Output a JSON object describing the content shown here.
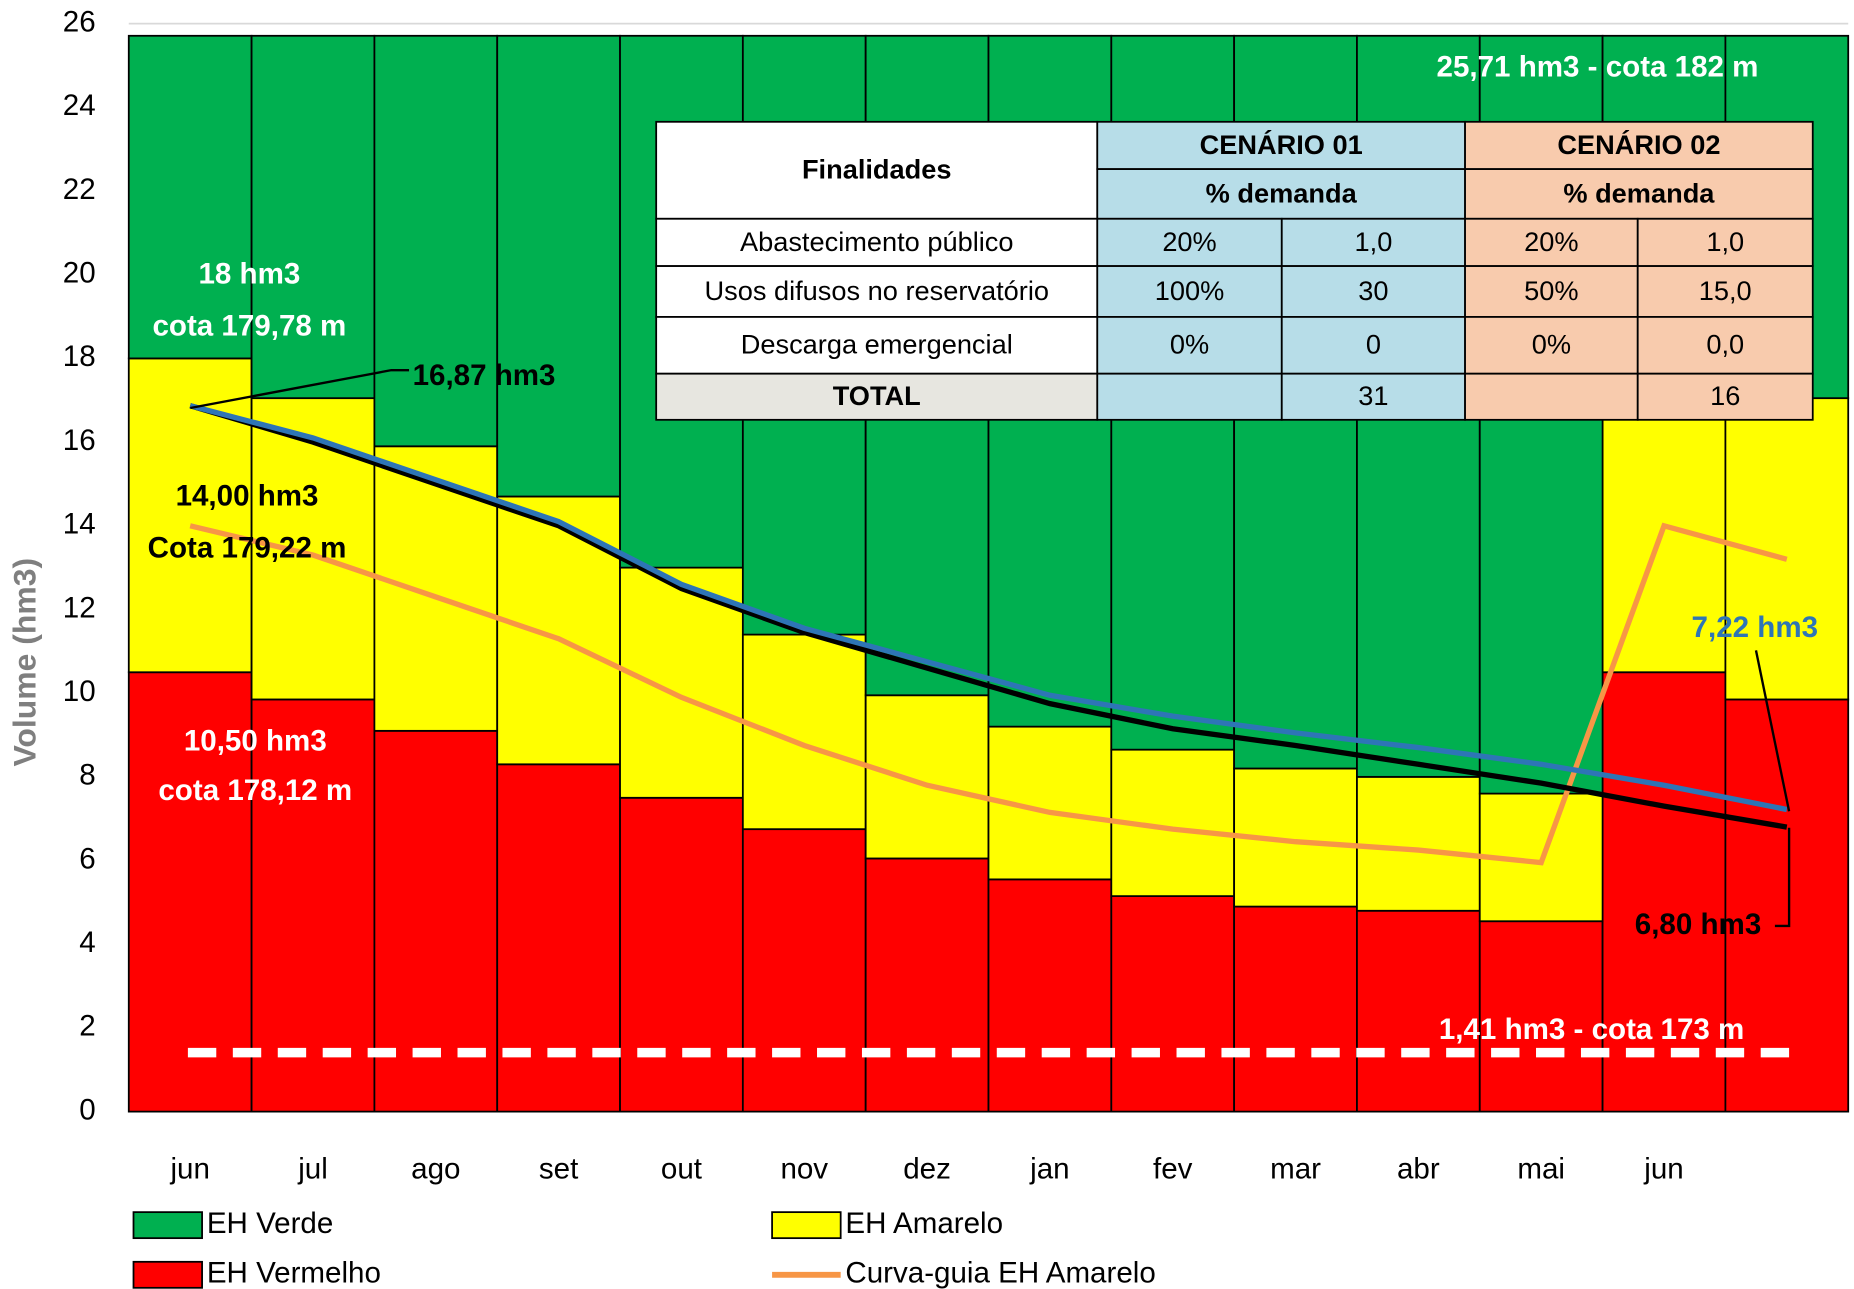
{
  "chart_data": {
    "type": "bar",
    "stacked": true,
    "y_label": "Volume (hm3)",
    "categories": [
      "jun",
      "jul",
      "ago",
      "set",
      "out",
      "nov",
      "dez",
      "jan",
      "fev",
      "mar",
      "abr",
      "mai",
      "jun",
      null
    ],
    "series": [
      {
        "name": "EH Vermelho",
        "color": "#ff0000",
        "values": [
          10.5,
          9.85,
          9.1,
          8.3,
          7.5,
          6.75,
          6.05,
          5.55,
          5.15,
          4.9,
          4.8,
          4.55,
          10.5,
          9.85
        ]
      },
      {
        "name": "EH Amarelo",
        "color": "#ffff00",
        "values": [
          7.5,
          7.2,
          6.8,
          6.4,
          5.5,
          4.65,
          3.9,
          3.65,
          3.5,
          3.3,
          3.2,
          3.05,
          7.5,
          7.2
        ]
      },
      {
        "name": "EH Verde",
        "color": "#00b050",
        "values": [
          7.71,
          8.66,
          9.81,
          11.01,
          12.71,
          14.31,
          15.76,
          16.51,
          17.06,
          17.51,
          17.71,
          18.11,
          7.71,
          8.66
        ]
      }
    ],
    "guide_curve": {
      "name": "Curva-guia EH Amarelo",
      "color": "#f79646",
      "values": [
        14.0,
        13.3,
        12.3,
        11.3,
        9.9,
        8.75,
        7.8,
        7.15,
        6.75,
        6.45,
        6.25,
        5.95,
        14.0,
        13.2
      ]
    },
    "lines": [
      {
        "color": "#000000",
        "values": [
          16.87,
          16.0,
          15.0,
          14.0,
          12.5,
          11.45,
          10.6,
          9.75,
          9.15,
          8.75,
          8.3,
          7.85,
          7.3,
          6.8
        ]
      },
      {
        "color": "#2e75b6",
        "values": [
          16.87,
          16.1,
          15.1,
          14.1,
          12.6,
          11.55,
          10.75,
          9.95,
          9.45,
          9.05,
          8.7,
          8.3,
          7.8,
          7.22
        ]
      }
    ],
    "reference_line": {
      "value": 1.41,
      "label": "1,41 hm3 - cota 173 m",
      "color": "#ffffff"
    },
    "annotations": [
      "25,71 hm3 - cota 182 m",
      "18 hm3",
      "cota 179,78 m",
      "16,87 hm3",
      "14,00 hm3",
      "Cota 179,22 m",
      "10,50 hm3",
      "cota 178,12 m",
      "7,22 hm3",
      "6,80 hm3"
    ],
    "ylim": [
      0,
      26
    ],
    "yticks": [
      0,
      2,
      4,
      6,
      8,
      10,
      12,
      14,
      16,
      18,
      20,
      22,
      24,
      26
    ],
    "grid": false,
    "table": {
      "title": "Finalidades",
      "groups": [
        "CENÁRIO 01",
        "CENÁRIO 02"
      ],
      "subheaders": [
        "% demanda",
        "% demanda"
      ],
      "rows": [
        [
          "Abastecimento público",
          "20%",
          "1,0",
          "20%",
          "1,0"
        ],
        [
          "Usos difusos no reservatório",
          "100%",
          "30",
          "50%",
          "15,0"
        ],
        [
          "Descarga emergencial",
          "0%",
          "0",
          "0%",
          "0,0"
        ]
      ],
      "total": [
        "TOTAL",
        null,
        "31",
        null,
        "16"
      ]
    }
  }
}
